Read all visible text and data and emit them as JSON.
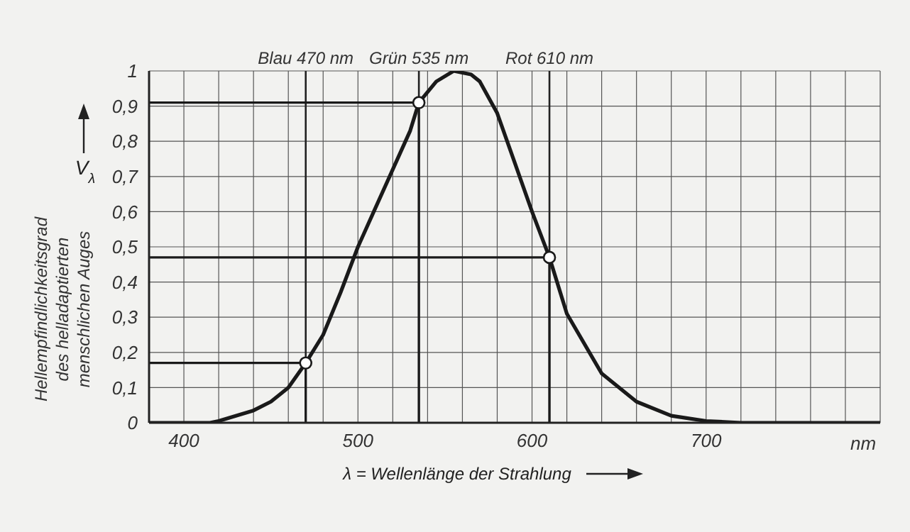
{
  "chart_data": {
    "type": "line",
    "xlabel": "λ = Wellenlänge der Strahlung",
    "ylabel": "Hellempfindlichkeitsgrad\ndes helladaptierten\nmenschlichen Auges",
    "annotations": [
      "V$_{λ}$",
      "nm"
    ],
    "xlim": [
      380,
      800
    ],
    "ylim": [
      0,
      1
    ],
    "xticks": [
      {
        "value": 400,
        "label": "400"
      },
      {
        "value": 420,
        "label": null
      },
      {
        "value": 440,
        "label": null
      },
      {
        "value": 460,
        "label": null
      },
      {
        "value": 480,
        "label": null
      },
      {
        "value": 500,
        "label": "500"
      },
      {
        "value": 520,
        "label": null
      },
      {
        "value": 540,
        "label": null
      },
      {
        "value": 560,
        "label": null
      },
      {
        "value": 580,
        "label": null
      },
      {
        "value": 600,
        "label": "600"
      },
      {
        "value": 620,
        "label": null
      },
      {
        "value": 640,
        "label": null
      },
      {
        "value": 660,
        "label": null
      },
      {
        "value": 680,
        "label": null
      },
      {
        "value": 700,
        "label": "700"
      },
      {
        "value": 720,
        "label": null
      },
      {
        "value": 740,
        "label": null
      },
      {
        "value": 760,
        "label": null
      },
      {
        "value": 780,
        "label": null
      }
    ],
    "yticks": [
      0,
      {
        "value": 0.1,
        "label": "0,1"
      },
      {
        "value": 0.2,
        "label": "0,2"
      },
      {
        "value": 0.3,
        "label": "0,3"
      },
      {
        "value": 0.4,
        "label": "0,4"
      },
      {
        "value": 0.5,
        "label": "0,5"
      },
      {
        "value": 0.6,
        "label": "0,6"
      },
      {
        "value": 0.7,
        "label": "0,7"
      },
      {
        "value": 0.8,
        "label": "0,8"
      },
      {
        "value": 0.9,
        "label": "0,9"
      },
      1
    ],
    "grid": true,
    "legend": false,
    "series": [
      {
        "type": "line",
        "color": "#1a1a1a",
        "x": [
          380,
          400,
          415,
          420,
          440,
          450,
          460,
          470,
          480,
          490,
          500,
          510,
          520,
          530,
          535,
          545,
          555,
          565,
          570,
          580,
          590,
          600,
          610,
          620,
          640,
          660,
          680,
          700,
          720,
          740,
          760,
          780,
          800
        ],
        "values": [
          0,
          0,
          0,
          0.005,
          0.035,
          0.06,
          0.1,
          0.17,
          0.25,
          0.37,
          0.5,
          0.61,
          0.72,
          0.83,
          0.91,
          0.97,
          1,
          0.99,
          0.97,
          0.88,
          0.74,
          0.6,
          0.47,
          0.31,
          0.14,
          0.06,
          0.02,
          0.005,
          0,
          0,
          0,
          0,
          0
        ]
      },
      {
        "type": "line",
        "color": "#1a1a1a",
        "x": [
          380,
          470,
          470
        ],
        "values": [
          0.17,
          0.17,
          0
        ]
      },
      {
        "type": "line",
        "color": "#1a1a1a",
        "x": [
          380,
          535,
          535
        ],
        "values": [
          0.91,
          0.91,
          0
        ]
      },
      {
        "type": "line",
        "color": "#1a1a1a",
        "x": [
          380,
          610,
          610
        ],
        "values": [
          0.47,
          0.47,
          0
        ]
      },
      {
        "type": "scatter",
        "color": "#1a1a1a",
        "marker": "circle",
        "x": [
          470,
          535,
          610
        ],
        "values": [
          0.17,
          0.91,
          0.47
        ]
      }
    ],
    "ref_lines": [
      {
        "axis": "x",
        "value": 470,
        "label": "Blau 470 nm"
      },
      {
        "axis": "x",
        "value": 535,
        "label": "Grün 535 nm"
      },
      {
        "axis": "x",
        "value": 610,
        "label": "Rot 610 nm"
      }
    ]
  }
}
